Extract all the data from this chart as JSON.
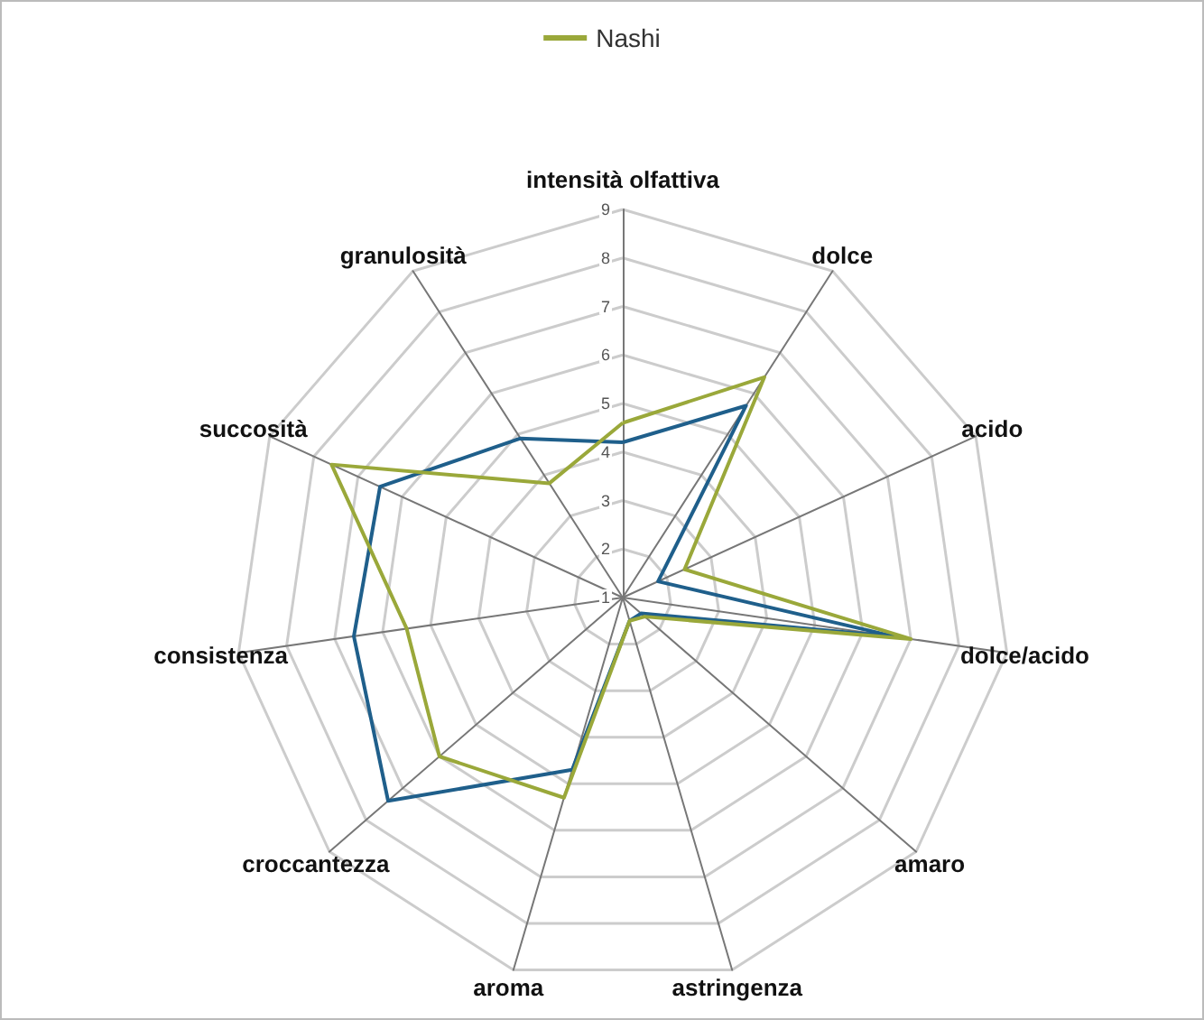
{
  "chart_data": {
    "type": "radar",
    "categories": [
      "intensità olfattiva",
      "dolce",
      "acido",
      "dolce/acido",
      "amaro",
      "astringenza",
      "aroma",
      "croccantezza",
      "consistenza",
      "succosità",
      "granulosità"
    ],
    "series": [
      {
        "color": "#1f5f8b",
        "values": [
          4.2,
          5.7,
          1.8,
          6.7,
          1.5,
          1.5,
          4.7,
          7.4,
          6.6,
          6.5,
          4.9
        ]
      },
      {
        "name": "Nashi",
        "color": "#9aa83a",
        "values": [
          4.6,
          6.4,
          2.4,
          7.0,
          1.6,
          1.5,
          5.3,
          6.0,
          5.5,
          7.6,
          3.8
        ]
      }
    ],
    "ylim": [
      1,
      9
    ],
    "yticks": [
      1,
      2,
      3,
      4,
      5,
      6,
      7,
      8,
      9
    ],
    "grid": true,
    "legend": "top",
    "marker": "none",
    "line_style": "solid"
  }
}
